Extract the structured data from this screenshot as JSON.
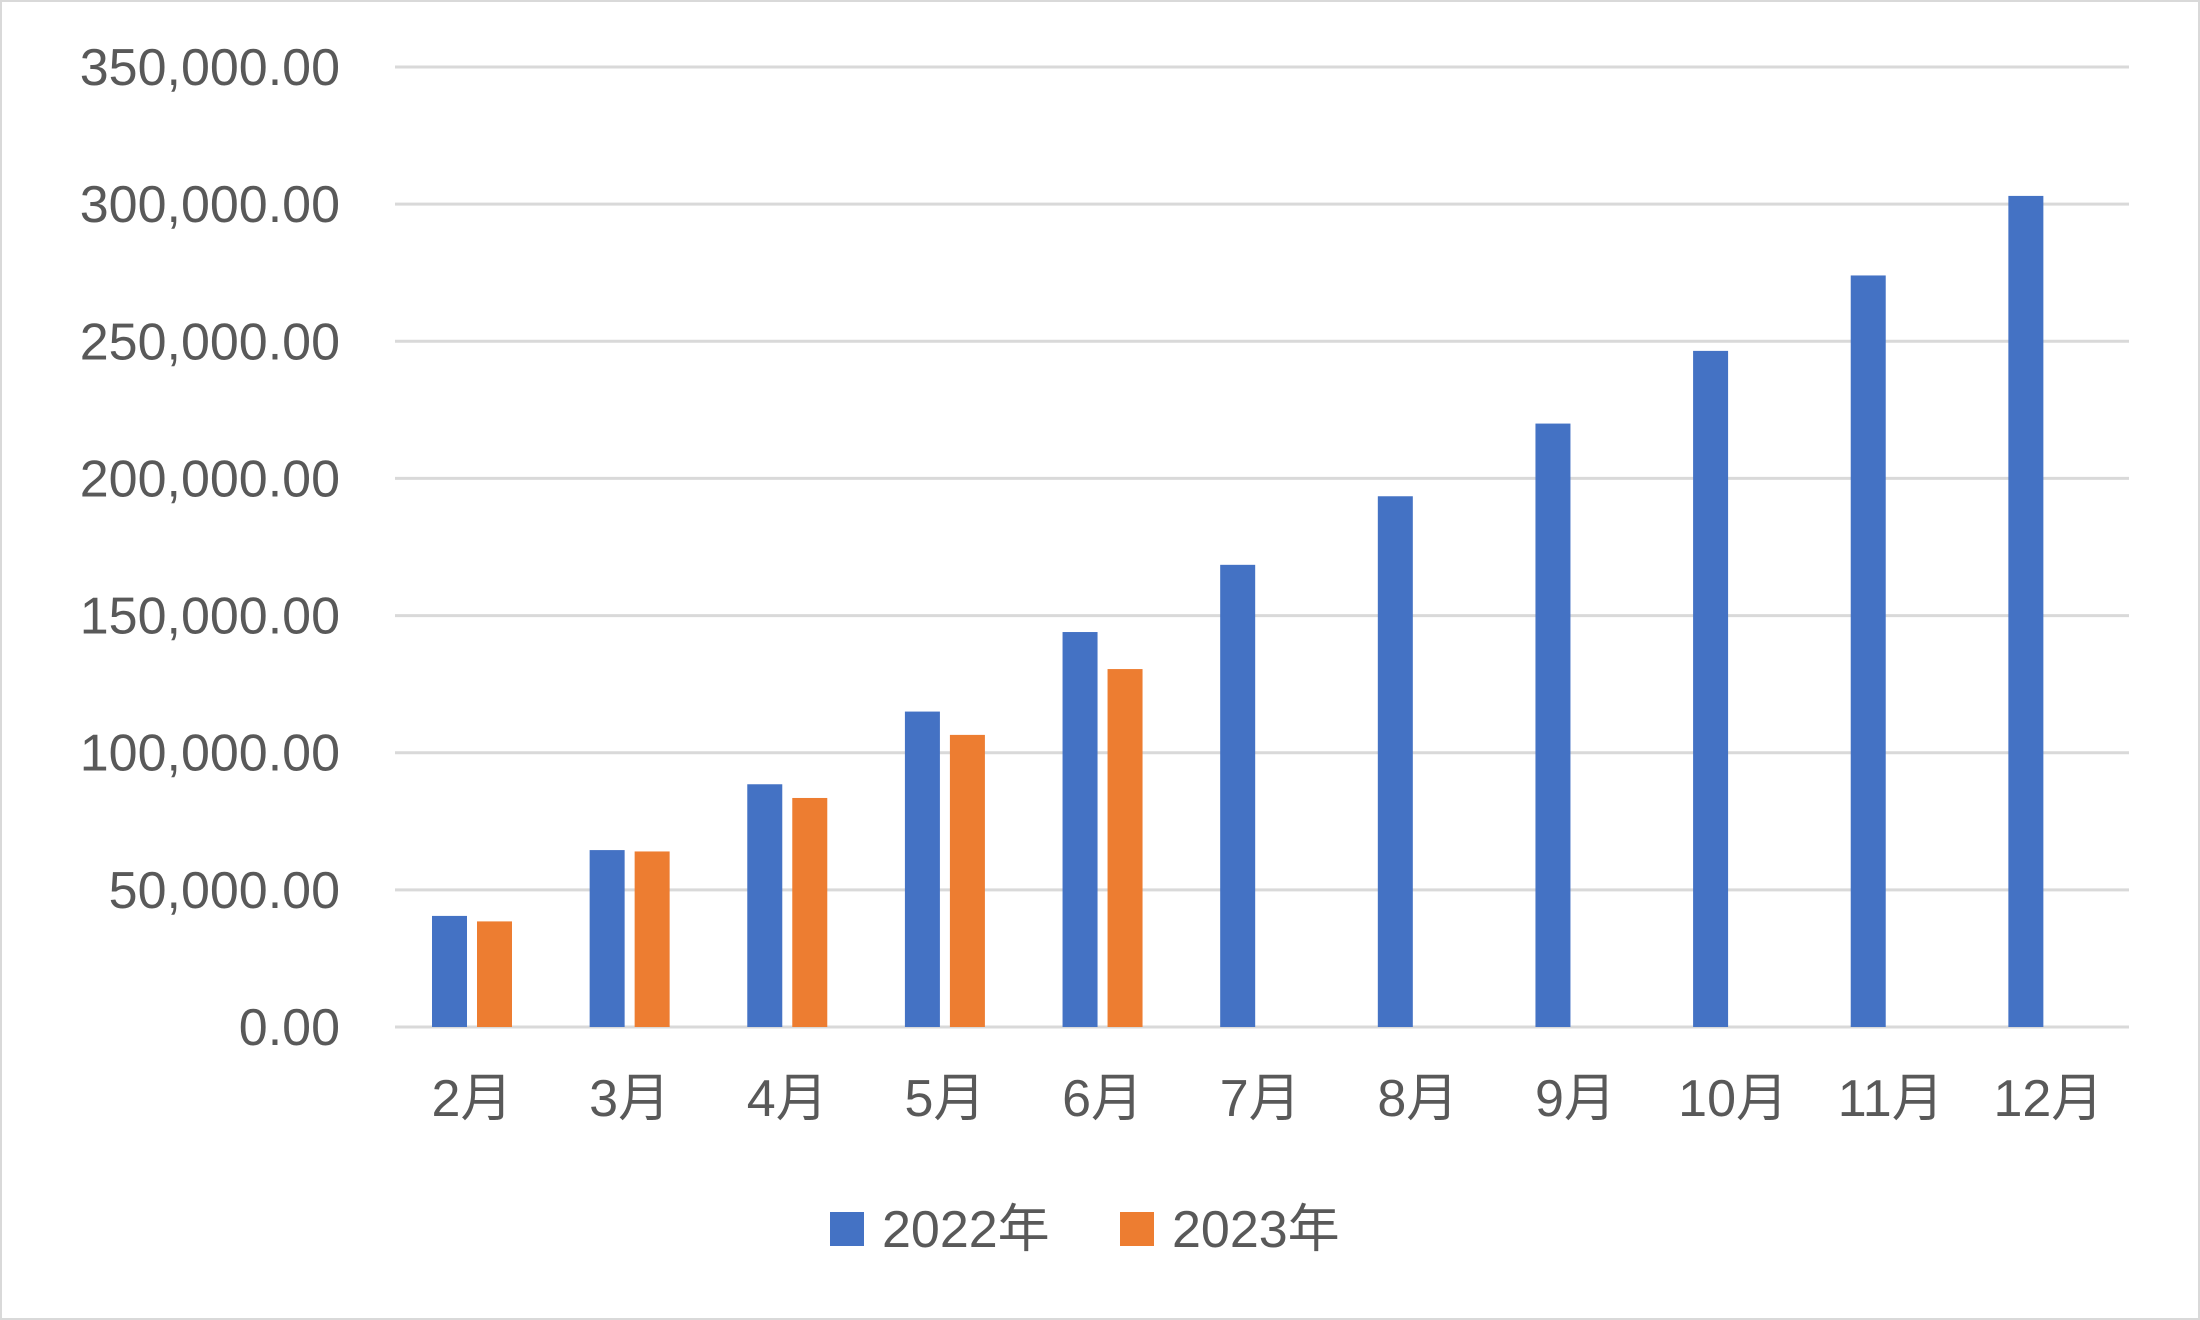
{
  "chart_data": {
    "type": "bar",
    "categories": [
      "2月",
      "3月",
      "4月",
      "5月",
      "6月",
      "7月",
      "8月",
      "9月",
      "10月",
      "11月",
      "12月"
    ],
    "series": [
      {
        "name": "2022年",
        "color": "#4472c4",
        "values": [
          40500,
          64500,
          88500,
          115000,
          144000,
          168500,
          193500,
          220000,
          246500,
          274000,
          303000
        ]
      },
      {
        "name": "2023年",
        "color": "#ed7d31",
        "values": [
          38500,
          64000,
          83500,
          106500,
          130500,
          null,
          null,
          null,
          null,
          null,
          null
        ]
      }
    ],
    "y_ticks": [
      "0.00",
      "50,000.00",
      "100,000.00",
      "150,000.00",
      "200,000.00",
      "250,000.00",
      "300,000.00",
      "350,000.00"
    ],
    "ylim": [
      0,
      350000
    ],
    "grid": true,
    "legend_position": "bottom"
  }
}
